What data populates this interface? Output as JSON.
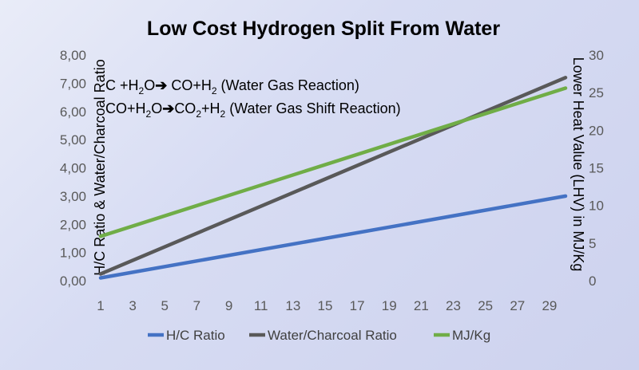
{
  "chart_data": {
    "type": "line",
    "title": "Low Cost Hydrogen Split From Water",
    "ylabel_left": "H/C Ratio & Water/Charcoal Ratio",
    "ylabel_right": "Lower Heat Value (LHV) in MJ/Kg",
    "ylim_left": [
      0,
      8
    ],
    "ylim_right": [
      0,
      30
    ],
    "yticks_left": [
      "0,00",
      "1,00",
      "2,00",
      "3,00",
      "4,00",
      "5,00",
      "6,00",
      "7,00",
      "8,00"
    ],
    "yticks_right": [
      "0",
      "5",
      "10",
      "15",
      "20",
      "25",
      "30"
    ],
    "xlim": [
      1,
      30
    ],
    "xticks": [
      "1",
      "3",
      "5",
      "7",
      "9",
      "11",
      "13",
      "15",
      "17",
      "19",
      "21",
      "23",
      "25",
      "27",
      "29"
    ],
    "grid": false,
    "legend_position": "bottom",
    "annotations": [
      {
        "parts": [
          {
            "t": "C +H"
          },
          {
            "t": "2",
            "sub": true
          },
          {
            "t": "O"
          },
          {
            "t": "➔",
            "bold": true
          },
          {
            "t": " CO+H"
          },
          {
            "t": "2",
            "sub": true
          },
          {
            "t": " (Water Gas Reaction)"
          }
        ]
      },
      {
        "parts": [
          {
            "t": "CO+H"
          },
          {
            "t": "2",
            "sub": true
          },
          {
            "t": "O"
          },
          {
            "t": "➔",
            "bold": true
          },
          {
            "t": "CO"
          },
          {
            "t": "2",
            "sub": true
          },
          {
            "t": "+H"
          },
          {
            "t": "2",
            "sub": true
          },
          {
            "t": " (Water Gas Shift Reaction)"
          }
        ]
      }
    ],
    "series": [
      {
        "name": "H/C Ratio",
        "axis": "left",
        "color": "#4472c4",
        "x": [
          1,
          30
        ],
        "y": [
          0.1,
          3.0
        ]
      },
      {
        "name": "Water/Charcoal Ratio",
        "axis": "left",
        "color": "#595959",
        "x": [
          1,
          30
        ],
        "y": [
          0.24,
          7.2
        ]
      },
      {
        "name": "MJ/Kg",
        "axis": "right",
        "color": "#70ad47",
        "x": [
          1,
          30
        ],
        "y": [
          5.9,
          25.6
        ]
      }
    ]
  }
}
